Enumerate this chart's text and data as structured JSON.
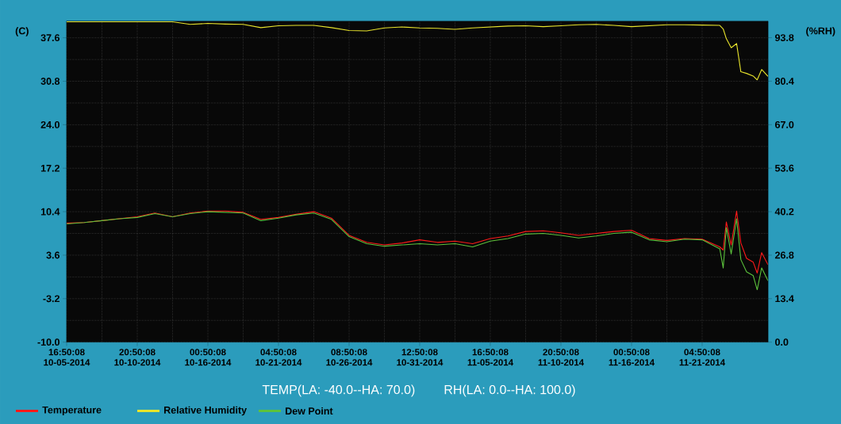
{
  "chart_data": {
    "type": "line",
    "ylabel": "(C)",
    "y2label": "(%RH)",
    "annotations": [
      "TEMP(LA: -40.0--HA: 70.0)",
      "RH(LA: 0.0--HA: 100.0)"
    ],
    "x": [
      "2014-10-05T16:50",
      "2014-10-06T23:50",
      "2014-10-08T06:50",
      "2014-10-09T13:50",
      "2014-10-10T20:50",
      "2014-10-12T03:50",
      "2014-10-13T10:50",
      "2014-10-14T17:50",
      "2014-10-16T00:50",
      "2014-10-17T07:50",
      "2014-10-18T14:50",
      "2014-10-19T21:50",
      "2014-10-21T04:50",
      "2014-10-22T11:50",
      "2014-10-23T18:50",
      "2014-10-25T01:50",
      "2014-10-26T08:50",
      "2014-10-27T15:50",
      "2014-10-28T22:50",
      "2014-10-30T05:50",
      "2014-10-31T12:50",
      "2014-11-01T19:50",
      "2014-11-03T02:50",
      "2014-11-04T09:50",
      "2014-11-05T16:50",
      "2014-11-06T23:50",
      "2014-11-08T06:50",
      "2014-11-09T13:50",
      "2014-11-10T20:50",
      "2014-11-12T03:50",
      "2014-11-13T10:50",
      "2014-11-14T17:50",
      "2014-11-16T00:50",
      "2014-11-17T07:50",
      "2014-11-18T14:50",
      "2014-11-19T21:50",
      "2014-11-21T04:50",
      "2014-11-22T11:50",
      "2014-11-22T17:50",
      "2014-11-22T23:20",
      "2014-11-23T07:50",
      "2014-11-23T17:20",
      "2014-11-24T00:50",
      "2014-11-24T10:50",
      "2014-11-24T22:30",
      "2014-11-25T05:30",
      "2014-11-25T13:20",
      "2014-11-26T00:30"
    ],
    "series": [
      {
        "name": "Temperature",
        "color": "#ff1a1a",
        "values": [
          8.6,
          8.7,
          9.0,
          9.3,
          9.6,
          10.2,
          9.6,
          10.2,
          10.5,
          10.5,
          10.3,
          9.2,
          9.5,
          10.0,
          10.4,
          9.4,
          6.7,
          5.6,
          5.2,
          5.5,
          6.0,
          5.6,
          5.8,
          5.4,
          6.2,
          6.6,
          7.3,
          7.4,
          7.1,
          6.7,
          7.0,
          7.3,
          7.5,
          6.2,
          5.9,
          6.2,
          6.1,
          4.9,
          4.4,
          8.8,
          5.2,
          10.5,
          5.5,
          3.1,
          2.5,
          0.8,
          4.0,
          2.1
        ]
      },
      {
        "name": "Relative Humidity",
        "color": "#e8e42c",
        "axis": "y2",
        "values": [
          98.7,
          98.7,
          98.7,
          98.7,
          98.7,
          98.7,
          98.7,
          97.9,
          98.2,
          98.0,
          97.9,
          96.9,
          97.5,
          97.6,
          97.6,
          96.9,
          96.0,
          95.9,
          96.8,
          97.1,
          96.8,
          96.7,
          96.4,
          96.8,
          97.1,
          97.4,
          97.5,
          97.2,
          97.5,
          97.8,
          97.9,
          97.6,
          97.2,
          97.5,
          97.8,
          97.8,
          97.7,
          97.6,
          96.5,
          93.5,
          90.7,
          92.0,
          83.3,
          82.8,
          82.0,
          80.8,
          84.0,
          81.9
        ]
      },
      {
        "name": "Dew Point",
        "color": "#5cc23c",
        "values": [
          8.5,
          8.7,
          9.0,
          9.3,
          9.5,
          10.1,
          9.6,
          10.1,
          10.4,
          10.3,
          10.2,
          9.0,
          9.4,
          9.9,
          10.2,
          9.2,
          6.5,
          5.4,
          5.0,
          5.2,
          5.4,
          5.2,
          5.4,
          4.9,
          5.8,
          6.2,
          6.9,
          7.0,
          6.7,
          6.3,
          6.6,
          7.0,
          7.2,
          6.0,
          5.7,
          6.1,
          6.0,
          4.6,
          1.6,
          7.9,
          3.8,
          9.3,
          2.9,
          1.0,
          0.4,
          -1.8,
          1.6,
          -0.4
        ]
      }
    ],
    "xlim": [
      "2014-10-05T16:50",
      "2014-11-26T00:30"
    ],
    "xticks": [
      {
        "value": "2014-10-05T16:50",
        "label": "16:50:08 10-05-2014"
      },
      {
        "value": "2014-10-10T20:50",
        "label": "20:50:08 10-10-2014"
      },
      {
        "value": "2014-10-16T00:50",
        "label": "00:50:08 10-16-2014"
      },
      {
        "value": "2014-10-21T04:50",
        "label": "04:50:08 10-21-2014"
      },
      {
        "value": "2014-10-26T08:50",
        "label": "08:50:08 10-26-2014"
      },
      {
        "value": "2014-10-31T12:50",
        "label": "12:50:08 10-31-2014"
      },
      {
        "value": "2014-11-05T16:50",
        "label": "16:50:08 11-05-2014"
      },
      {
        "value": "2014-11-10T20:50",
        "label": "20:50:08 11-10-2014"
      },
      {
        "value": "2014-11-16T00:50",
        "label": "00:50:08 11-16-2014"
      },
      {
        "value": "2014-11-21T04:50",
        "label": "04:50:08 11-21-2014"
      }
    ],
    "ylim": [
      -10,
      40.2
    ],
    "yticks": [
      {
        "value": -10,
        "label": "-10.0"
      },
      -3.2,
      3.6,
      10.4,
      17.2,
      {
        "value": 24,
        "label": "24.0"
      },
      30.8,
      37.6
    ],
    "y2lim": [
      0,
      98.9
    ],
    "y2ticks": [
      {
        "value": 0,
        "label": "0.0"
      },
      13.4,
      26.8,
      40.2,
      53.6,
      {
        "value": 67,
        "label": "67.0"
      },
      80.4,
      93.8
    ],
    "grid": true,
    "legend": "bottom left",
    "marker": "none",
    "line_style": "solid"
  }
}
